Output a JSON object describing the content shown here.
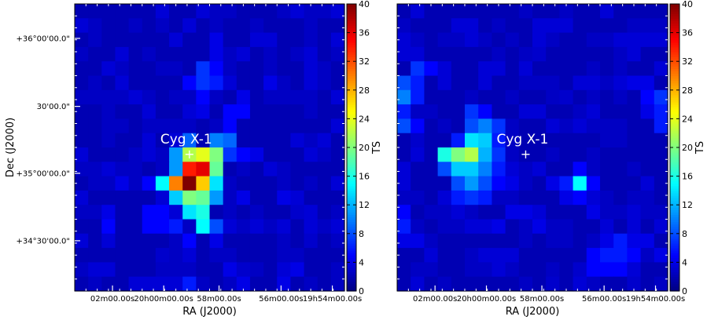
{
  "chart_data": [
    {
      "type": "heatmap",
      "grid_size": [
        20,
        20
      ],
      "xlabel": "RA (J2000)",
      "ylabel": "Dec (J2000)",
      "x_tick_labels": [
        "02m00.00s",
        "20h00m00.00s",
        "58m00.00s",
        "56m00.00s",
        "19h54m00.00s"
      ],
      "y_tick_labels": [
        "+36°00'00.0\"",
        "30'00.0\"",
        "+35°00'00.0\"",
        "+34°30'00.0\""
      ],
      "colorbar": {
        "label": "TS",
        "range": [
          0,
          40
        ],
        "ticks": [
          0,
          4,
          8,
          12,
          16,
          20,
          24,
          28,
          32,
          36,
          40
        ]
      },
      "annotation": {
        "text": "Cyg X-1",
        "marker": "+",
        "col": 8.5,
        "row": 10.5
      },
      "background_value": 2,
      "cells": [
        [
          9,
          8,
          9
        ],
        [
          9,
          10,
          10
        ],
        [
          9,
          11,
          9
        ],
        [
          10,
          7,
          11
        ],
        [
          10,
          8,
          22
        ],
        [
          10,
          9,
          24
        ],
        [
          10,
          10,
          20
        ],
        [
          10,
          11,
          7
        ],
        [
          11,
          7,
          11
        ],
        [
          11,
          8,
          34
        ],
        [
          11,
          9,
          36
        ],
        [
          11,
          10,
          19
        ],
        [
          12,
          6,
          15
        ],
        [
          12,
          7,
          30
        ],
        [
          12,
          8,
          40
        ],
        [
          12,
          9,
          27
        ],
        [
          12,
          10,
          14
        ],
        [
          13,
          7,
          13
        ],
        [
          13,
          8,
          20
        ],
        [
          13,
          9,
          19
        ],
        [
          13,
          10,
          11
        ],
        [
          14,
          8,
          14
        ],
        [
          14,
          9,
          16
        ],
        [
          15,
          9,
          15
        ],
        [
          15,
          10,
          8
        ],
        [
          4,
          9,
          7
        ],
        [
          4,
          10,
          5
        ],
        [
          5,
          8,
          5
        ],
        [
          5,
          9,
          7
        ],
        [
          5,
          10,
          6
        ],
        [
          6,
          9,
          5
        ],
        [
          7,
          9,
          4
        ],
        [
          7,
          11,
          5
        ],
        [
          7,
          12,
          5
        ],
        [
          8,
          11,
          5
        ],
        [
          2,
          10,
          4
        ],
        [
          3,
          10,
          4
        ],
        [
          5,
          14,
          4
        ],
        [
          6,
          12,
          4
        ],
        [
          10,
          12,
          5
        ],
        [
          10,
          13,
          4
        ],
        [
          9,
          20,
          3
        ],
        [
          12,
          3,
          4
        ],
        [
          12,
          5,
          5
        ],
        [
          14,
          2,
          4
        ],
        [
          14,
          5,
          5
        ],
        [
          14,
          6,
          5
        ],
        [
          15,
          2,
          5
        ],
        [
          15,
          5,
          5
        ],
        [
          15,
          6,
          5
        ],
        [
          15,
          7,
          6
        ],
        [
          16,
          8,
          5
        ],
        [
          16,
          10,
          4
        ],
        [
          18,
          11,
          4
        ],
        [
          18,
          12,
          3
        ],
        [
          18,
          16,
          4
        ],
        [
          19,
          15,
          4
        ],
        [
          19,
          8,
          6
        ],
        [
          20,
          1,
          4
        ],
        [
          20,
          3,
          4
        ],
        [
          20,
          8,
          5
        ],
        [
          20,
          14,
          3
        ],
        [
          21,
          18,
          3
        ],
        [
          20,
          6,
          3
        ],
        [
          19,
          12,
          4
        ],
        [
          17,
          6,
          3
        ],
        [
          13,
          12,
          4
        ],
        [
          13,
          15,
          4
        ],
        [
          14,
          16,
          3
        ],
        [
          16,
          17,
          3
        ]
      ]
    },
    {
      "type": "heatmap",
      "grid_size": [
        20,
        20
      ],
      "xlabel": "RA (J2000)",
      "ylabel": "",
      "x_tick_labels": [
        "02m00.00s",
        "20h00m00.00s",
        "58m00.00s",
        "56m00.00s",
        "19h54m00.00s"
      ],
      "y_tick_labels": [],
      "colorbar": {
        "label": "TS",
        "range": [
          0,
          40
        ],
        "ticks": [
          0,
          4,
          8,
          12,
          16,
          20,
          24,
          28,
          32,
          36,
          40
        ]
      },
      "annotation": {
        "text": "Cyg X-1",
        "marker": "+",
        "col": 9.5,
        "row": 10.5
      },
      "background_value": 2,
      "cells": [
        [
          4,
          1,
          7
        ],
        [
          4,
          2,
          5
        ],
        [
          5,
          0,
          8
        ],
        [
          5,
          1,
          6
        ],
        [
          6,
          0,
          10
        ],
        [
          6,
          1,
          6
        ],
        [
          7,
          0,
          6
        ],
        [
          8,
          0,
          8
        ],
        [
          8,
          1,
          5
        ],
        [
          6,
          19,
          7
        ],
        [
          6,
          18,
          5
        ],
        [
          7,
          19,
          6
        ],
        [
          7,
          18,
          4
        ],
        [
          8,
          19,
          6
        ],
        [
          5,
          18,
          4
        ],
        [
          5,
          17,
          4
        ],
        [
          7,
          5,
          7
        ],
        [
          7,
          6,
          5
        ],
        [
          8,
          5,
          8
        ],
        [
          8,
          6,
          10
        ],
        [
          8,
          7,
          7
        ],
        [
          9,
          4,
          6
        ],
        [
          9,
          5,
          14
        ],
        [
          9,
          6,
          13
        ],
        [
          9,
          7,
          6
        ],
        [
          10,
          3,
          16
        ],
        [
          10,
          4,
          20
        ],
        [
          10,
          5,
          22
        ],
        [
          10,
          6,
          12
        ],
        [
          10,
          7,
          7
        ],
        [
          11,
          3,
          8
        ],
        [
          11,
          4,
          13
        ],
        [
          11,
          5,
          13
        ],
        [
          11,
          6,
          10
        ],
        [
          11,
          7,
          6
        ],
        [
          12,
          4,
          8
        ],
        [
          12,
          5,
          11
        ],
        [
          12,
          6,
          8
        ],
        [
          13,
          4,
          6
        ],
        [
          13,
          5,
          7
        ],
        [
          13,
          6,
          6
        ],
        [
          12,
          7,
          5
        ],
        [
          12,
          8,
          4
        ],
        [
          12,
          12,
          6
        ],
        [
          12,
          13,
          15
        ],
        [
          12,
          14,
          5
        ],
        [
          11,
          13,
          5
        ],
        [
          13,
          12,
          4
        ],
        [
          13,
          13,
          5
        ],
        [
          14,
          14,
          4
        ],
        [
          12,
          11,
          4
        ],
        [
          15,
          0,
          6
        ],
        [
          14,
          0,
          5
        ],
        [
          16,
          0,
          4
        ],
        [
          16,
          1,
          4
        ],
        [
          16,
          15,
          4
        ],
        [
          16,
          16,
          6
        ],
        [
          17,
          14,
          5
        ],
        [
          17,
          15,
          6
        ],
        [
          17,
          16,
          6
        ],
        [
          17,
          17,
          5
        ],
        [
          18,
          14,
          5
        ],
        [
          18,
          15,
          5
        ],
        [
          18,
          16,
          5
        ],
        [
          16,
          17,
          4
        ],
        [
          17,
          19,
          4
        ],
        [
          16,
          18,
          4
        ],
        [
          18,
          13,
          3
        ],
        [
          14,
          8,
          4
        ],
        [
          14,
          9,
          4
        ],
        [
          15,
          7,
          4
        ],
        [
          15,
          10,
          4
        ],
        [
          9,
          1,
          3
        ],
        [
          3,
          10,
          3
        ],
        [
          6,
          12,
          3
        ],
        [
          19,
          11,
          3
        ],
        [
          20,
          10,
          3
        ],
        [
          20,
          12,
          3
        ],
        [
          19,
          17,
          3
        ]
      ]
    }
  ]
}
